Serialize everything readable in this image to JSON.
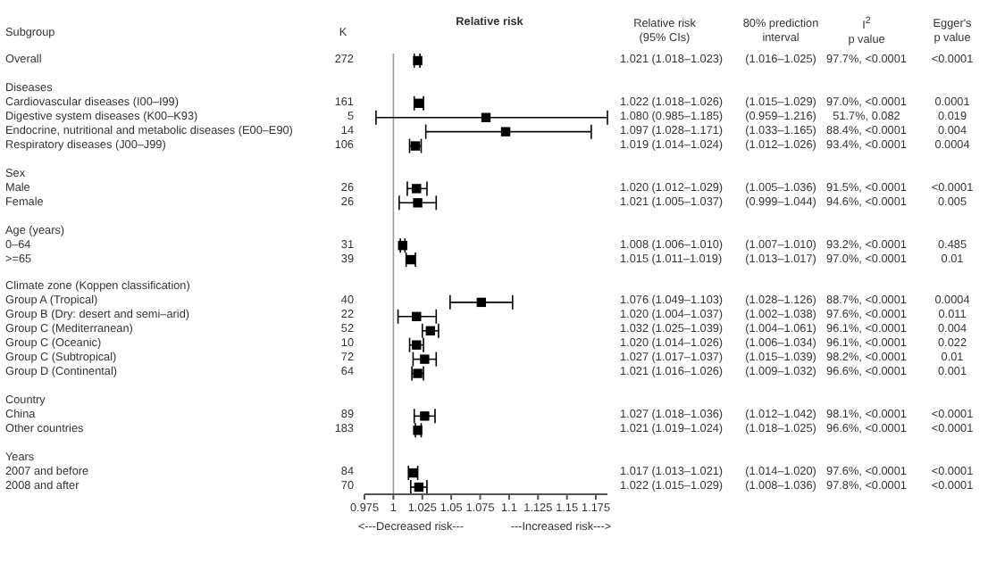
{
  "chart_data": {
    "type": "scatter",
    "orientation": "horizontal",
    "title": "Relative risk",
    "marker": "square",
    "color": "#000000",
    "categories": [
      "Overall",
      null,
      "Diseases",
      "Cardiovascular diseases (I00–I99)",
      "Digestive system diseases (K00–K93)",
      "Endocrine, nutritional and metabolic diseases (E00–E90)",
      "Respiratory diseases (J00–J99)",
      null,
      "Sex",
      "Male",
      "Female",
      null,
      "Age (years)",
      "0–64",
      ">=65",
      null,
      "Climate zone (Koppen classification)",
      "Group A (Tropical)",
      "Group B (Dry: desert and semi–arid)",
      "Group C (Mediterranean)",
      "Group C (Oceanic)",
      "Group C (Subtropical)",
      "Group D (Continental)",
      null,
      "Country",
      "China",
      "Other countries",
      null,
      "Years",
      "2007 and before",
      "2008 and after"
    ],
    "values": [
      1.021,
      null,
      null,
      1.022,
      1.08,
      1.097,
      1.019,
      null,
      null,
      1.02,
      1.021,
      null,
      null,
      1.008,
      1.015,
      null,
      null,
      1.076,
      1.02,
      1.032,
      1.02,
      1.027,
      1.021,
      null,
      null,
      1.027,
      1.021,
      null,
      null,
      1.017,
      1.022
    ],
    "errors": [
      [
        1.018,
        1.023
      ],
      null,
      null,
      [
        1.018,
        1.026
      ],
      [
        0.985,
        1.185
      ],
      [
        1.028,
        1.171
      ],
      [
        1.014,
        1.024
      ],
      null,
      null,
      [
        1.012,
        1.029
      ],
      [
        1.005,
        1.037
      ],
      null,
      null,
      [
        1.006,
        1.01
      ],
      [
        1.011,
        1.019
      ],
      null,
      null,
      [
        1.049,
        1.103
      ],
      [
        1.004,
        1.037
      ],
      [
        1.025,
        1.039
      ],
      [
        1.014,
        1.026
      ],
      [
        1.017,
        1.037
      ],
      [
        1.016,
        1.026
      ],
      null,
      null,
      [
        1.018,
        1.036
      ],
      [
        1.019,
        1.024
      ],
      null,
      null,
      [
        1.013,
        1.021
      ],
      [
        1.015,
        1.029
      ]
    ],
    "value_labels": [
      "1.021 (1.018–1.023)",
      null,
      null,
      "1.022 (1.018–1.026)",
      "1.080 (0.985–1.185)",
      "1.097 (1.028–1.171)",
      "1.019 (1.014–1.024)",
      null,
      null,
      "1.020 (1.012–1.029)",
      "1.021 (1.005–1.037)",
      null,
      null,
      "1.008 (1.006–1.010)",
      "1.015 (1.011–1.019)",
      null,
      null,
      "1.076 (1.049–1.103)",
      "1.020 (1.004–1.037)",
      "1.032 (1.025–1.039)",
      "1.020 (1.014–1.026)",
      "1.027 (1.017–1.037)",
      "1.021 (1.016–1.026)",
      null,
      null,
      "1.027 (1.018–1.036)",
      "1.021 (1.019–1.024)",
      null,
      null,
      "1.017 (1.013–1.021)",
      "1.022 (1.015–1.029)"
    ],
    "xlim": [
      0.975,
      1.185
    ],
    "xticks": [
      0.975,
      1,
      1.025,
      1.05,
      1.075,
      1.1,
      1.125,
      1.15,
      1.175
    ],
    "ref_lines": [
      {
        "axis": "x",
        "value": 1,
        "color": "#999999"
      }
    ],
    "annotations": [
      "Subgroup",
      "K",
      "Relative risk\n(95% CIs)",
      "80% prediction\ninterval",
      "I$^{2}$\np value",
      "Egger's\np value",
      "<---Decreased risk---",
      "---Increased risk--->",
      "272",
      "(1.016–1.025)",
      "97.7%, <0.0001",
      "<0.0001",
      "161",
      "(1.015–1.029)",
      "97.0%, <0.0001",
      "0.0001",
      "5",
      "(0.959–1.216)",
      "51.7%, 0.082",
      "0.019",
      "14",
      "(1.033–1.165)",
      "88.4%, <0.0001",
      "0.004",
      "106",
      "(1.012–1.026)",
      "93.4%, <0.0001",
      "0.0004",
      "26",
      "(1.005–1.036)",
      "91.5%, <0.0001",
      "<0.0001",
      "26",
      "(0.999–1.044)",
      "94.6%, <0.0001",
      "0.005",
      "31",
      "(1.007–1.010)",
      "93.2%, <0.0001",
      "0.485",
      "39",
      "(1.013–1.017)",
      "97.0%, <0.0001",
      "0.01",
      "40",
      "(1.028–1.126)",
      "88.7%, <0.0001",
      "0.0004",
      "22",
      "(1.002–1.038)",
      "97.6%, <0.0001",
      "0.011",
      "52",
      "(1.004–1.061)",
      "96.1%, <0.0001",
      "0.004",
      "10",
      "(1.006–1.034)",
      "96.1%, <0.0001",
      "0.022",
      "72",
      "(1.015–1.039)",
      "98.2%, <0.0001",
      "0.01",
      "64",
      "(1.009–1.032)",
      "96.6%, <0.0001",
      "0.001",
      "89",
      "(1.012–1.042)",
      "98.1%, <0.0001",
      "<0.0001",
      "183",
      "(1.018–1.025)",
      "96.6%, <0.0001",
      "<0.0001",
      "84",
      "(1.014–1.020)",
      "97.6%, <0.0001",
      "<0.0001",
      "70",
      "(1.008–1.036)",
      "97.8%, <0.0001",
      "<0.0001"
    ]
  }
}
